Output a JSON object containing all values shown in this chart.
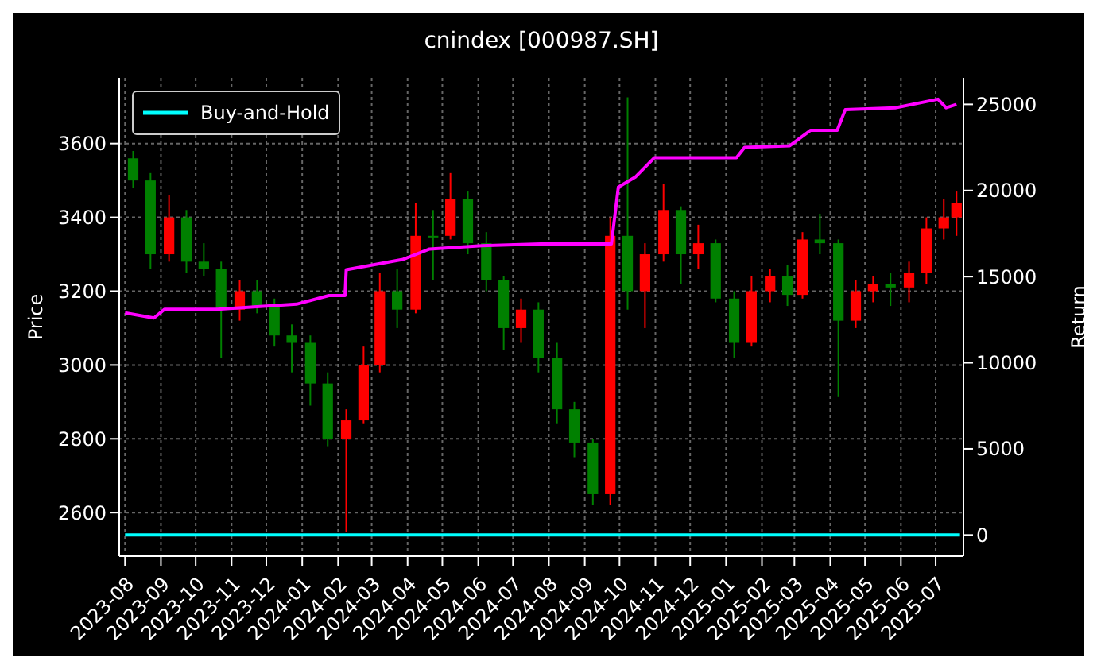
{
  "chart_data": {
    "type": "candlestick",
    "title": "cnindex [000987.SH]",
    "ylabel": "Price",
    "y2label": "Return",
    "xlim": [
      "2023-07-27",
      "2025-07-25"
    ],
    "xticks": [
      "2023-08",
      "2023-09",
      "2023-10",
      "2023-11",
      "2023-12",
      "2024-01",
      "2024-02",
      "2024-03",
      "2024-04",
      "2024-05",
      "2024-06",
      "2024-07",
      "2024-08",
      "2024-09",
      "2024-10",
      "2024-11",
      "2024-12",
      "2025-01",
      "2025-02",
      "2025-03",
      "2025-04",
      "2025-05",
      "2025-06",
      "2025-07"
    ],
    "ylim": [
      2482,
      3778
    ],
    "yticks": [
      2600,
      2800,
      3000,
      3200,
      3400,
      3600
    ],
    "y2lim": [
      -1230,
      26540
    ],
    "y2ticks": [
      0,
      5000,
      10000,
      15000,
      20000,
      25000
    ],
    "grid": true,
    "legend": "top left",
    "series": [
      {
        "x": [
          "2023-08-08",
          "2023-08-23",
          "2023-09-08",
          "2023-09-23",
          "2023-10-08",
          "2023-10-23",
          "2023-11-08",
          "2023-11-23",
          "2023-12-08",
          "2023-12-23",
          "2024-01-08",
          "2024-01-23",
          "2024-02-08",
          "2024-02-23",
          "2024-03-08",
          "2024-03-23",
          "2024-04-08",
          "2024-04-23",
          "2024-05-08",
          "2024-05-23",
          "2024-06-08",
          "2024-06-23",
          "2024-07-08",
          "2024-07-23",
          "2024-08-08",
          "2024-08-23",
          "2024-09-08",
          "2024-09-23",
          "2024-10-08",
          "2024-10-23",
          "2024-11-08",
          "2024-11-23",
          "2024-12-08",
          "2024-12-23",
          "2025-01-08",
          "2025-01-23",
          "2025-02-08",
          "2025-02-23",
          "2025-03-08",
          "2025-03-23",
          "2025-04-08",
          "2025-04-23",
          "2025-05-08",
          "2025-05-23",
          "2025-06-08",
          "2025-06-23",
          "2025-07-08",
          "2025-07-19"
        ],
        "ohlc": [
          [
            3560,
            3580,
            3480,
            3500
          ],
          [
            3500,
            3520,
            3260,
            3300
          ],
          [
            3300,
            3460,
            3280,
            3400
          ],
          [
            3400,
            3420,
            3250,
            3280
          ],
          [
            3280,
            3330,
            3240,
            3260
          ],
          [
            3260,
            3280,
            3020,
            3150
          ],
          [
            3150,
            3230,
            3120,
            3200
          ],
          [
            3200,
            3230,
            3140,
            3160
          ],
          [
            3160,
            3180,
            3050,
            3080
          ],
          [
            3080,
            3110,
            2980,
            3060
          ],
          [
            3060,
            3080,
            2890,
            2950
          ],
          [
            2950,
            2980,
            2780,
            2800
          ],
          [
            2800,
            2880,
            2548,
            2850
          ],
          [
            2850,
            3050,
            2840,
            3000
          ],
          [
            3000,
            3250,
            2980,
            3200
          ],
          [
            3200,
            3260,
            3100,
            3150
          ],
          [
            3150,
            3440,
            3140,
            3350
          ],
          [
            3350,
            3420,
            3230,
            3350
          ],
          [
            3350,
            3520,
            3340,
            3450
          ],
          [
            3450,
            3470,
            3300,
            3330
          ],
          [
            3330,
            3360,
            3200,
            3230
          ],
          [
            3230,
            3240,
            3040,
            3100
          ],
          [
            3100,
            3180,
            3060,
            3150
          ],
          [
            3150,
            3170,
            2980,
            3020
          ],
          [
            3020,
            3060,
            2840,
            2880
          ],
          [
            2880,
            2900,
            2750,
            2790
          ],
          [
            2790,
            2800,
            2620,
            2650
          ],
          [
            2650,
            3400,
            2620,
            3350
          ],
          [
            3350,
            3725,
            3150,
            3200
          ],
          [
            3200,
            3330,
            3100,
            3300
          ],
          [
            3300,
            3490,
            3280,
            3420
          ],
          [
            3420,
            3430,
            3220,
            3300
          ],
          [
            3300,
            3380,
            3260,
            3330
          ],
          [
            3330,
            3340,
            3170,
            3180
          ],
          [
            3180,
            3200,
            3020,
            3060
          ],
          [
            3060,
            3240,
            3050,
            3200
          ],
          [
            3200,
            3260,
            3170,
            3240
          ],
          [
            3240,
            3270,
            3160,
            3190
          ],
          [
            3190,
            3360,
            3180,
            3340
          ],
          [
            3340,
            3410,
            3300,
            3330
          ],
          [
            3330,
            3340,
            2913,
            3120
          ],
          [
            3120,
            3230,
            3100,
            3200
          ],
          [
            3200,
            3240,
            3170,
            3220
          ],
          [
            3220,
            3250,
            3160,
            3210
          ],
          [
            3210,
            3280,
            3170,
            3250
          ],
          [
            3250,
            3400,
            3220,
            3370
          ],
          [
            3370,
            3450,
            3340,
            3400
          ],
          [
            3400,
            3470,
            3350,
            3440
          ]
        ],
        "colors": [
          "#008000",
          "#008000",
          "#ff0000",
          "#008000",
          "#008000",
          "#008000",
          "#ff0000",
          "#008000",
          "#008000",
          "#008000",
          "#008000",
          "#008000",
          "#ff0000",
          "#ff0000",
          "#ff0000",
          "#008000",
          "#ff0000",
          "#008000",
          "#ff0000",
          "#008000",
          "#008000",
          "#008000",
          "#ff0000",
          "#008000",
          "#008000",
          "#008000",
          "#008000",
          "#ff0000",
          "#008000",
          "#ff0000",
          "#ff0000",
          "#008000",
          "#ff0000",
          "#008000",
          "#008000",
          "#ff0000",
          "#ff0000",
          "#008000",
          "#ff0000",
          "#008000",
          "#008000",
          "#ff0000",
          "#ff0000",
          "#008000",
          "#ff0000",
          "#ff0000",
          "#ff0000",
          "#ff0000"
        ]
      },
      {
        "type": "line",
        "axis": "y2",
        "color": "#ff00ff",
        "x": [
          "2023-08-01",
          "2023-08-26",
          "2023-09-04",
          "2023-10-20",
          "2023-12-27",
          "2024-01-24",
          "2024-02-07",
          "2024-02-08",
          "2024-03-28",
          "2024-04-20",
          "2024-06-04",
          "2024-07-25",
          "2024-09-24",
          "2024-09-30",
          "2024-10-15",
          "2024-10-31",
          "2025-01-10",
          "2025-01-17",
          "2025-02-25",
          "2025-03-15",
          "2025-04-07",
          "2025-04-14",
          "2025-05-27",
          "2025-07-03",
          "2025-07-10",
          "2025-07-19"
        ],
        "values": [
          12900,
          12600,
          13100,
          13100,
          13400,
          13900,
          13900,
          15400,
          16000,
          16600,
          16800,
          16900,
          16900,
          20200,
          20800,
          21900,
          21900,
          22500,
          22600,
          23500,
          23500,
          24700,
          24800,
          25300,
          24800,
          25000
        ]
      },
      {
        "type": "line",
        "name": "Buy-and-Hold",
        "axis": "y2",
        "color": "#00ffff",
        "x": [
          "2023-08-01",
          "2025-07-22"
        ],
        "values": [
          0,
          0
        ]
      }
    ]
  }
}
